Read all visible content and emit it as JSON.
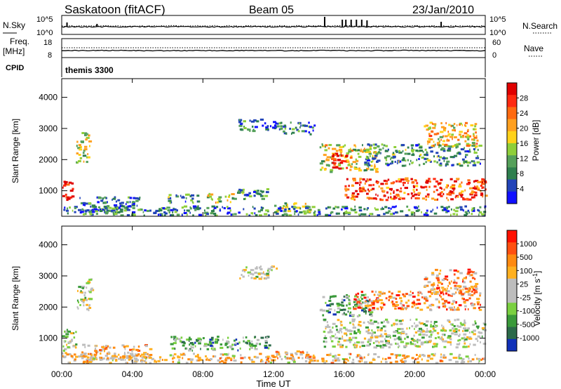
{
  "header": {
    "station": "Saskatoon (fitACF)",
    "beam": "Beam 05",
    "date": "23/Jan/2010"
  },
  "panels": {
    "nsky_label": "N.Sky",
    "nsky_top": "10^5",
    "nsky_bottom": "10^0",
    "nsearch_label": "N.Search",
    "nsearch_top": "10^5",
    "nsearch_bottom": "10^0",
    "freq_label": "Freq.",
    "freq_unit": "[MHz]",
    "freq_top": "18",
    "freq_bottom": "8",
    "nave_label": "Nave",
    "nave_top": "60",
    "nave_bottom": "0",
    "cpid_label": "CPID",
    "cpid_value": "themis 3300"
  },
  "chart_data": [
    {
      "type": "heatmap",
      "name": "power",
      "ylabel": "Slant Range [km]",
      "xlabel": "Time UT",
      "x_ticks": [
        "00:00",
        "04:00",
        "08:00",
        "12:00",
        "16:00",
        "20:00",
        "00:00"
      ],
      "y_ticks": [
        1000,
        2000,
        3000,
        4000
      ],
      "ylim": [
        180,
        4600
      ],
      "colorbar": {
        "label": "Power [dB]",
        "ticks": [
          "4",
          "8",
          "12",
          "16",
          "20",
          "24",
          "28"
        ],
        "colors": [
          "#1010ff",
          "#2244b8",
          "#2e7f4e",
          "#55a05a",
          "#8fcf3a",
          "#ffd21a",
          "#ffa020",
          "#ff6a10",
          "#ff2a10",
          "#e00000"
        ]
      },
      "regions": [
        {
          "t": [
            0.0,
            0.6
          ],
          "r": [
            650,
            1300
          ],
          "level": 0.9
        },
        {
          "t": [
            0.8,
            1.6
          ],
          "r": [
            1900,
            2900
          ],
          "level": 0.5
        },
        {
          "t": [
            1.0,
            4.5
          ],
          "r": [
            300,
            800
          ],
          "level": 0.2
        },
        {
          "t": [
            6.0,
            7.8
          ],
          "r": [
            600,
            900
          ],
          "level": 0.3
        },
        {
          "t": [
            8.2,
            9.6
          ],
          "r": [
            600,
            900
          ],
          "level": 0.5
        },
        {
          "t": [
            9.6,
            11.8
          ],
          "r": [
            700,
            1050
          ],
          "level": 0.3
        },
        {
          "t": [
            10.0,
            12.2
          ],
          "r": [
            2900,
            3300
          ],
          "level": 0.2
        },
        {
          "t": [
            12.3,
            14.3
          ],
          "r": [
            2800,
            3200
          ],
          "level": 0.25
        },
        {
          "t": [
            12.0,
            14.3
          ],
          "r": [
            300,
            600
          ],
          "level": 0.4
        },
        {
          "t": [
            14.6,
            17.8
          ],
          "r": [
            1600,
            2500
          ],
          "level": 0.5
        },
        {
          "t": [
            15.2,
            16.2
          ],
          "r": [
            1700,
            2200
          ],
          "level": 0.95
        },
        {
          "t": [
            16.0,
            24.0
          ],
          "r": [
            700,
            1400
          ],
          "level": 0.8
        },
        {
          "t": [
            17.0,
            23.7
          ],
          "r": [
            1800,
            2500
          ],
          "level": 0.3
        },
        {
          "t": [
            20.5,
            23.5
          ],
          "r": [
            2400,
            3200
          ],
          "level": 0.6
        },
        {
          "t": [
            0.0,
            24.0
          ],
          "r": [
            200,
            500
          ],
          "level": 0.25
        }
      ]
    },
    {
      "type": "heatmap",
      "name": "velocity",
      "ylabel": "Slant Range [km]",
      "xlabel": "Time UT",
      "x_ticks": [
        "00:00",
        "04:00",
        "08:00",
        "12:00",
        "16:00",
        "20:00",
        "00:00"
      ],
      "y_ticks": [
        1000,
        2000,
        3000,
        4000
      ],
      "ylim": [
        180,
        4600
      ],
      "colorbar": {
        "label": "Velocity [m s^-1]",
        "ticks": [
          "1000",
          "500",
          "100",
          "25",
          "-25",
          "-100",
          "-500",
          "-1000"
        ],
        "colors": [
          "#1030b8",
          "#2c6a4a",
          "#3a9a3a",
          "#7ad040",
          "#bdbdbd",
          "#bdbdbd",
          "#ffb020",
          "#ff8a10",
          "#ff5010",
          "#ff1000"
        ]
      },
      "regions": [
        {
          "t": [
            0.0,
            0.8
          ],
          "r": [
            500,
            1300
          ],
          "level": 0.45
        },
        {
          "t": [
            0.8,
            1.8
          ],
          "r": [
            1900,
            2900
          ],
          "level": 0.45
        },
        {
          "t": [
            1.0,
            5.0
          ],
          "r": [
            300,
            800
          ],
          "level": 0.65
        },
        {
          "t": [
            6.0,
            11.8
          ],
          "r": [
            600,
            1050
          ],
          "level": 0.3
        },
        {
          "t": [
            10.0,
            12.2
          ],
          "r": [
            2900,
            3300
          ],
          "level": 0.45
        },
        {
          "t": [
            12.0,
            14.3
          ],
          "r": [
            300,
            600
          ],
          "level": 0.65
        },
        {
          "t": [
            14.6,
            17.5
          ],
          "r": [
            1700,
            2400
          ],
          "level": 0.3
        },
        {
          "t": [
            16.5,
            23.7
          ],
          "r": [
            1900,
            2500
          ],
          "level": 0.75
        },
        {
          "t": [
            14.8,
            24.0
          ],
          "r": [
            700,
            1600
          ],
          "level": 0.45
        },
        {
          "t": [
            20.5,
            23.5
          ],
          "r": [
            2400,
            3200
          ],
          "level": 0.7
        },
        {
          "t": [
            0.0,
            24.0
          ],
          "r": [
            200,
            500
          ],
          "level": 0.6
        }
      ]
    }
  ]
}
